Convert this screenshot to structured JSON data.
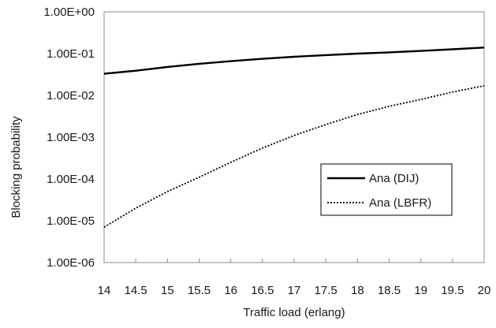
{
  "chart_data": {
    "type": "line",
    "xlabel": "Traffic load (erlang)",
    "ylabel": "Blocking probability",
    "x_ticks": [
      "14",
      "14.5",
      "15",
      "15.5",
      "16",
      "16.5",
      "17",
      "17.5",
      "18",
      "18.5",
      "19",
      "19.5",
      "20"
    ],
    "y_ticks": [
      "1.00E+00",
      "1.00E-01",
      "1.00E-02",
      "1.00E-03",
      "1.00E-04",
      "1.00E-05",
      "1.00E-06"
    ],
    "xlim": [
      14,
      20
    ],
    "ylim": [
      1e-06,
      1
    ],
    "y_scale": "log",
    "grid": false,
    "legend_position": "right",
    "x": [
      14,
      14.5,
      15,
      15.5,
      16,
      16.5,
      17,
      17.5,
      18,
      18.5,
      19,
      19.5,
      20
    ],
    "series": [
      {
        "name": "Ana (DIJ)",
        "style": "solid",
        "color": "#000000",
        "values": [
          0.033,
          0.039,
          0.048,
          0.057,
          0.066,
          0.075,
          0.084,
          0.092,
          0.1,
          0.107,
          0.116,
          0.127,
          0.14
        ]
      },
      {
        "name": "Ana (LBFR)",
        "style": "dotted",
        "color": "#000000",
        "values": [
          7e-06,
          2e-05,
          5e-05,
          0.00011,
          0.00025,
          0.00055,
          0.0011,
          0.002,
          0.0035,
          0.0055,
          0.008,
          0.012,
          0.017
        ]
      }
    ]
  }
}
